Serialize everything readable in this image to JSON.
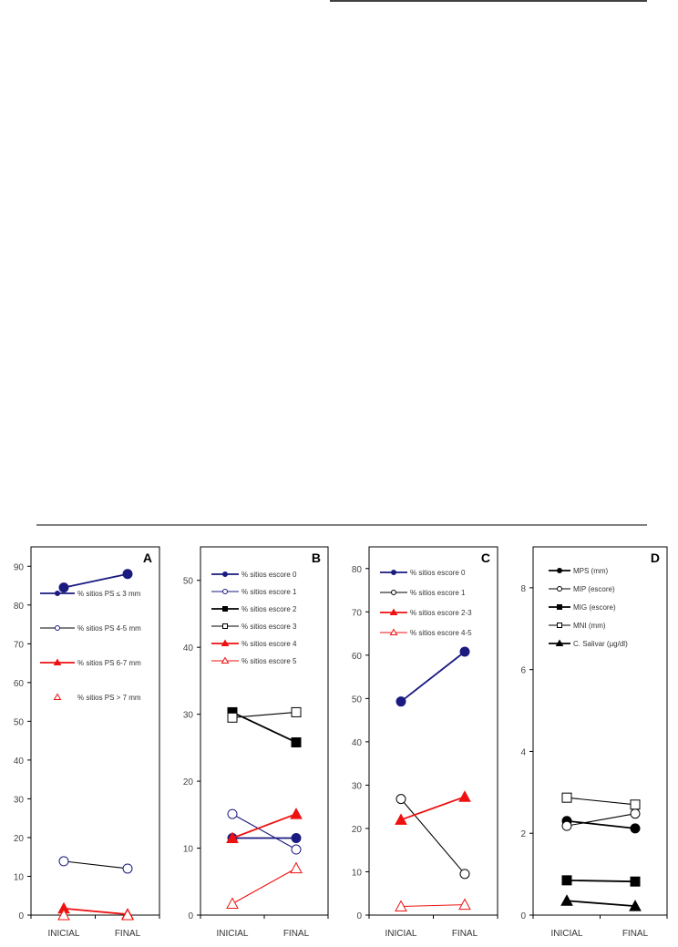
{
  "chart_data": [
    {
      "type": "line",
      "panel": "A",
      "categories": [
        "INICIAL",
        "FINAL"
      ],
      "ylim": [
        0,
        95
      ],
      "yticks": [
        0,
        10,
        20,
        30,
        40,
        50,
        60,
        70,
        80,
        90
      ],
      "legend_position": "top-right",
      "series": [
        {
          "name": "% sitios PS ≤ 3 mm",
          "values": [
            84.5,
            88
          ],
          "color": "#1a1a80",
          "marker": "circle-filled",
          "line": true
        },
        {
          "name": "% sitios PS 4-5 mm",
          "values": [
            13.9,
            12
          ],
          "color": "#000000",
          "marker_color": "#1a1a80",
          "marker": "circle-open",
          "line": true
        },
        {
          "name": "% sitios PS 6-7 mm",
          "values": [
            1.7,
            0.2
          ],
          "color": "#ee1111",
          "marker": "triangle-filled",
          "line": true
        },
        {
          "name": "% sitios PS > 7 mm",
          "values": [
            0,
            0
          ],
          "color": "#ee1111",
          "marker": "triangle-open",
          "line": false
        }
      ]
    },
    {
      "type": "line",
      "panel": "B",
      "categories": [
        "INICIAL",
        "FINAL"
      ],
      "ylim": [
        0,
        55
      ],
      "yticks": [
        0,
        10,
        20,
        30,
        40,
        50
      ],
      "legend_position": "top-right",
      "series": [
        {
          "name": "% sitios escore 0",
          "values": [
            11.5,
            11.5
          ],
          "color": "#1a1a80",
          "marker": "circle-filled",
          "line": true
        },
        {
          "name": "% sitios escore 1",
          "values": [
            15.1,
            9.8
          ],
          "color": "#1a1a80",
          "marker": "circle-open",
          "line": true
        },
        {
          "name": "% sitios escore 2",
          "values": [
            30.3,
            25.8
          ],
          "color": "#000000",
          "marker": "square-filled",
          "line": true
        },
        {
          "name": "% sitios escore 3",
          "values": [
            29.5,
            30.3
          ],
          "color": "#000000",
          "marker": "square-open",
          "line": true
        },
        {
          "name": "% sitios escore 4",
          "values": [
            11.5,
            15.1
          ],
          "color": "#ee1111",
          "marker": "triangle-filled",
          "line": true
        },
        {
          "name": "% sitios escore 5",
          "values": [
            1.7,
            7.0
          ],
          "color": "#ee1111",
          "marker": "triangle-open",
          "line": true
        }
      ]
    },
    {
      "type": "line",
      "panel": "C",
      "categories": [
        "INICIAL",
        "FINAL"
      ],
      "ylim": [
        0,
        85
      ],
      "yticks": [
        0,
        10,
        20,
        30,
        40,
        50,
        60,
        70,
        80
      ],
      "legend_position": "top-right",
      "series": [
        {
          "name": "% sitios escore 0",
          "values": [
            49.3,
            60.8
          ],
          "color": "#1a1a80",
          "marker": "circle-filled",
          "line": true
        },
        {
          "name": "% sitios escore 1",
          "values": [
            26.8,
            9.5
          ],
          "color": "#000000",
          "marker": "circle-open",
          "line": true
        },
        {
          "name": "% sitios escore 2-3",
          "values": [
            22,
            27.3
          ],
          "color": "#ee1111",
          "marker": "triangle-filled",
          "line": true
        },
        {
          "name": "% sitios escore 4-5",
          "values": [
            2,
            2.4
          ],
          "color": "#ee1111",
          "marker": "triangle-open",
          "line": true
        }
      ]
    },
    {
      "type": "line",
      "panel": "D",
      "categories": [
        "INICIAL",
        "FINAL"
      ],
      "ylim": [
        0,
        9
      ],
      "yticks": [
        0,
        2,
        4,
        6,
        8
      ],
      "legend_position": "top-right",
      "series": [
        {
          "name": "MPS (mm)",
          "values": [
            2.3,
            2.12
          ],
          "color": "#000000",
          "marker": "circle-filled",
          "line": true
        },
        {
          "name": "MIP (escore)",
          "values": [
            2.18,
            2.48
          ],
          "color": "#000000",
          "marker": "circle-open",
          "line": true
        },
        {
          "name": "MIG (escore)",
          "values": [
            0.85,
            0.82
          ],
          "color": "#000000",
          "marker": "square-filled",
          "line": true
        },
        {
          "name": "MNI (mm)",
          "values": [
            2.87,
            2.7
          ],
          "color": "#000000",
          "marker": "square-open",
          "line": true
        },
        {
          "name": "C. Salivar (µg/dl)",
          "values": [
            0.35,
            0.22
          ],
          "color": "#000000",
          "marker": "triangle-filled",
          "line": true
        }
      ]
    }
  ]
}
